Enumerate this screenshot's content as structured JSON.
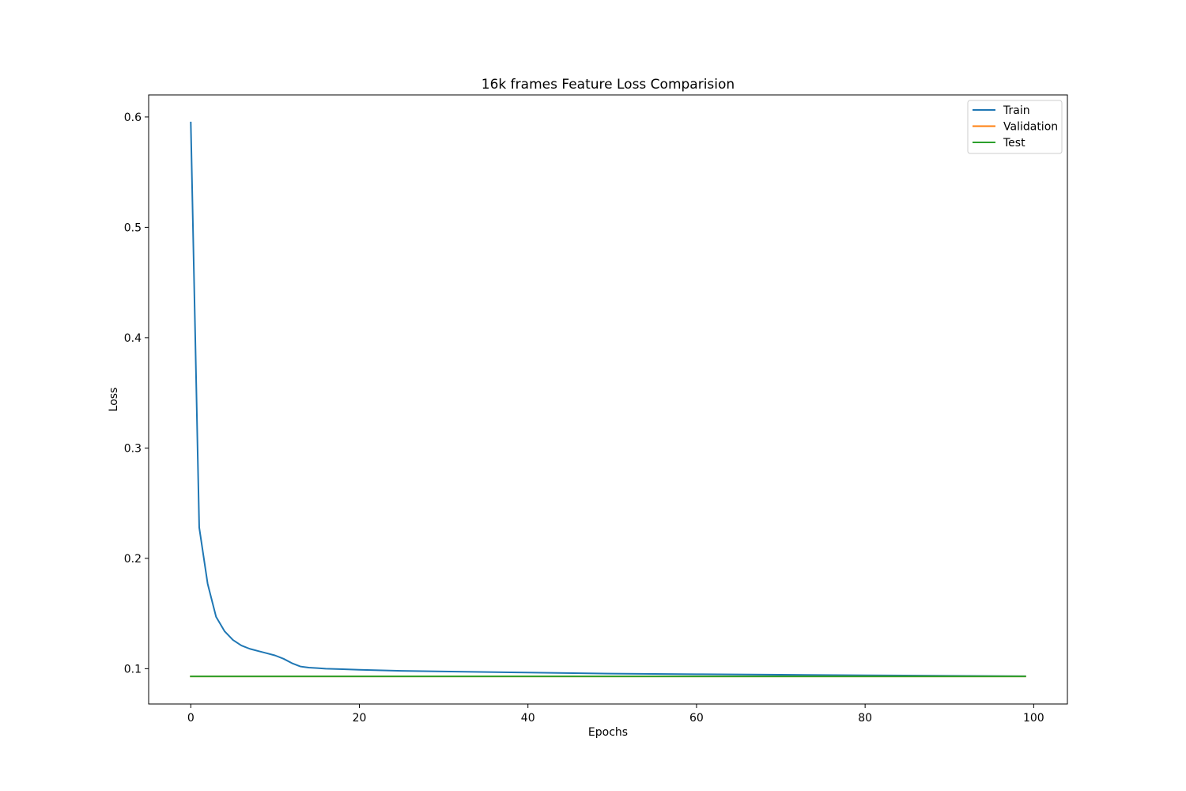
{
  "chart_data": {
    "type": "line",
    "title": "16k frames Feature Loss Comparision",
    "xlabel": "Epochs",
    "ylabel": "Loss",
    "xlim": [
      -5,
      104
    ],
    "ylim": [
      0.068,
      0.62
    ],
    "xticks": [
      0,
      20,
      40,
      60,
      80,
      100
    ],
    "yticks": [
      0.1,
      0.2,
      0.3,
      0.4,
      0.5,
      0.6
    ],
    "xtick_labels": [
      "0",
      "20",
      "40",
      "60",
      "80",
      "100"
    ],
    "ytick_labels": [
      "0.1",
      "0.2",
      "0.3",
      "0.4",
      "0.5",
      "0.6"
    ],
    "grid": false,
    "legend_position": "top-right",
    "series": [
      {
        "name": "Train",
        "color": "#1f77b4",
        "x": [
          0,
          1,
          2,
          3,
          4,
          5,
          6,
          7,
          8,
          9,
          10,
          11,
          12,
          13,
          14,
          15,
          16,
          18,
          20,
          25,
          30,
          40,
          50,
          60,
          70,
          80,
          90,
          99
        ],
        "y": [
          0.595,
          0.228,
          0.177,
          0.147,
          0.134,
          0.126,
          0.121,
          0.118,
          0.116,
          0.114,
          0.112,
          0.109,
          0.105,
          0.102,
          0.101,
          0.1005,
          0.1,
          0.0995,
          0.099,
          0.098,
          0.0975,
          0.0965,
          0.0955,
          0.095,
          0.0945,
          0.094,
          0.0935,
          0.0932
        ]
      },
      {
        "name": "Validation",
        "color": "#ff7f0e",
        "x": [
          0,
          99
        ],
        "y": [
          0.093,
          0.093
        ]
      },
      {
        "name": "Test",
        "color": "#2ca02c",
        "x": [
          0,
          99
        ],
        "y": [
          0.093,
          0.093
        ]
      }
    ]
  }
}
